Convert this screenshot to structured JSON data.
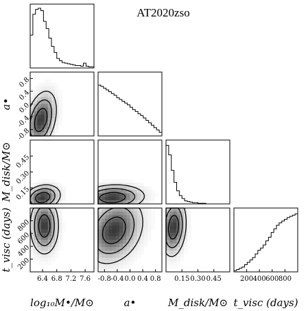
{
  "chart_data": {
    "type": "corner",
    "title": "AT2020zso",
    "parameters": [
      {
        "key": "logM",
        "label": "log₁₀M•/M⊙",
        "range": [
          6.05,
          7.85
        ],
        "ticks": [
          6.4,
          6.8,
          7.2,
          7.6
        ]
      },
      {
        "key": "a",
        "label": "a•",
        "range": [
          -1.0,
          1.0
        ],
        "ticks": [
          -0.8,
          -0.4,
          0.0,
          0.4,
          0.8
        ]
      },
      {
        "key": "Mdisk",
        "label": "M_disk/M⊙",
        "range": [
          0.0,
          0.6
        ],
        "ticks": [
          0.15,
          0.3,
          0.45
        ]
      },
      {
        "key": "tvisc",
        "label": "t_visc (days)",
        "range": [
          0,
          1000
        ],
        "ticks": [
          200,
          400,
          600,
          800
        ]
      }
    ],
    "y_tick_labels": {
      "a": [
        "0.8",
        "0.4",
        "0.0",
        "-0.4",
        "-0.8"
      ],
      "Mdisk": [
        "0.45",
        "0.30",
        "0.15"
      ],
      "tvisc": [
        "800",
        "600",
        "400",
        "200"
      ]
    },
    "x_tick_labels": {
      "logM": [
        "6.4",
        "6.8",
        "7.2",
        "7.6"
      ],
      "a": [
        "-0.8",
        "-0.4",
        "0.0",
        "0.4",
        "0.8"
      ],
      "Mdisk": [
        "0.15",
        "0.30",
        "0.45"
      ],
      "tvisc": [
        "200",
        "400",
        "600",
        "800"
      ]
    },
    "histograms": {
      "logM": [
        0.55,
        0.9,
        0.98,
        1.0,
        0.96,
        0.78,
        0.66,
        0.5,
        0.36,
        0.26,
        0.16,
        0.12,
        0.09,
        0.08,
        0.07,
        0.06,
        0.05,
        0.04,
        0.04,
        0.03,
        0.08,
        0.03,
        0.02,
        0.02
      ],
      "a": [
        0.85,
        0.83,
        0.8,
        0.77,
        0.74,
        0.71,
        0.68,
        0.64,
        0.61,
        0.58,
        0.55,
        0.52,
        0.48,
        0.44,
        0.41,
        0.37,
        0.34,
        0.3,
        0.26,
        0.22,
        0.18,
        0.14,
        0.1,
        0.06
      ],
      "Mdisk": [
        0.98,
        0.82,
        0.56,
        0.36,
        0.22,
        0.14,
        0.09,
        0.05,
        0.04,
        0.03,
        0.02,
        0.02,
        0.01,
        0.01,
        0.01,
        0.0,
        0.0,
        0.0,
        0.0,
        0.0,
        0.0,
        0.0,
        0.0,
        0.0
      ],
      "tvisc": [
        0.02,
        0.04,
        0.06,
        0.08,
        0.12,
        0.16,
        0.2,
        0.24,
        0.3,
        0.36,
        0.4,
        0.45,
        0.52,
        0.58,
        0.66,
        0.72,
        0.78,
        0.82,
        0.85,
        0.88,
        0.91,
        0.93,
        0.95,
        0.97
      ]
    },
    "joint_modes": [
      {
        "x": "logM",
        "y": "a",
        "mx": 6.35,
        "my": -0.5,
        "sx": 0.22,
        "sy": 0.45,
        "rho": 0.35
      },
      {
        "x": "logM",
        "y": "Mdisk",
        "mx": 6.4,
        "my": 0.06,
        "sx": 0.25,
        "sy": 0.06,
        "rho": 0.2
      },
      {
        "x": "logM",
        "y": "tvisc",
        "mx": 6.45,
        "my": 720,
        "sx": 0.2,
        "sy": 220,
        "rho": 0.0
      },
      {
        "x": "a",
        "y": "Mdisk",
        "mx": -0.55,
        "my": 0.06,
        "sx": 0.5,
        "sy": 0.06,
        "rho": 0.1
      },
      {
        "x": "a",
        "y": "tvisc",
        "mx": -0.5,
        "my": 650,
        "sx": 0.45,
        "sy": 260,
        "rho": 0.25
      },
      {
        "x": "Mdisk",
        "y": "tvisc",
        "mx": 0.07,
        "my": 700,
        "sx": 0.06,
        "sy": 230,
        "rho": 0.15
      }
    ]
  }
}
